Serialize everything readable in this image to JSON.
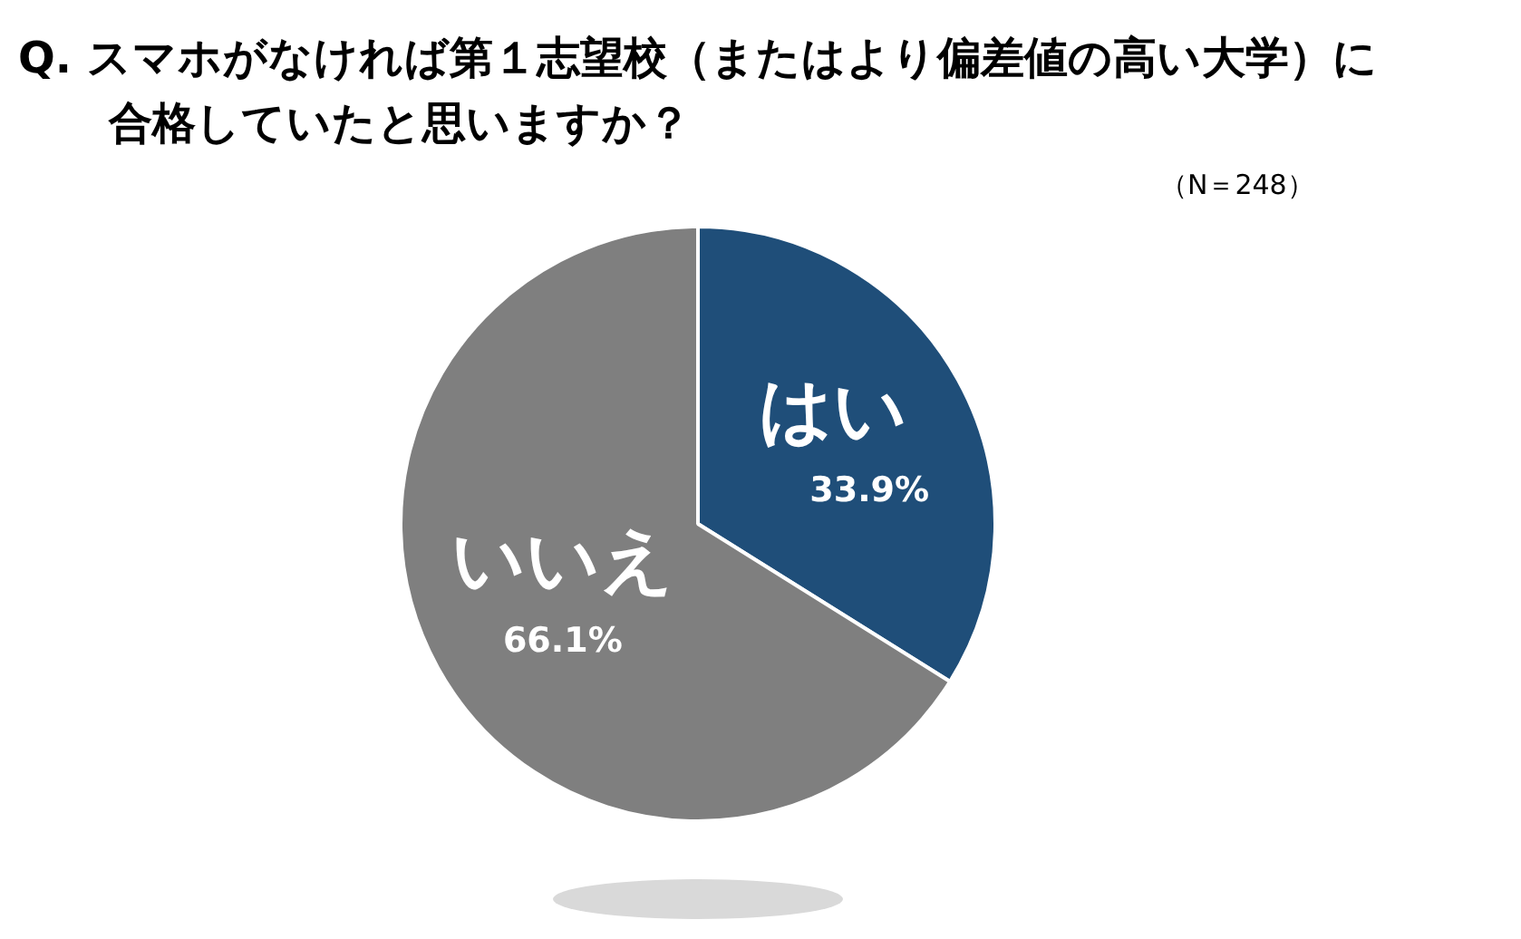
{
  "chart_data": {
    "type": "pie",
    "title": "Q.  スマホがなければ第１志望校（またはより偏差値の高い大学）に合格していたと思いますか？",
    "subtitle": "（N＝248）",
    "categories": [
      "はい",
      "いいえ"
    ],
    "values": [
      33.9,
      66.1
    ],
    "colors": [
      "#1f4e79",
      "#7f7f7f"
    ],
    "value_labels": [
      "33.9%",
      "66.1%"
    ],
    "legend": false
  }
}
